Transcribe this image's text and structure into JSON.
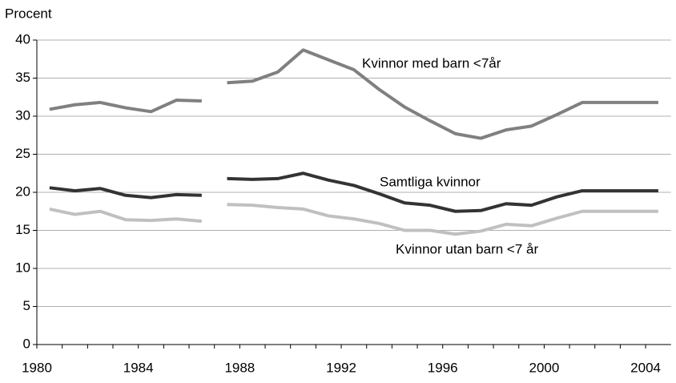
{
  "chart_data": {
    "type": "line",
    "y_label": "Procent",
    "categories": [
      "1980",
      null,
      null,
      null,
      "1984",
      null,
      null,
      null,
      "1988",
      null,
      null,
      null,
      "1992",
      null,
      null,
      null,
      "1996",
      null,
      null,
      null,
      "2000",
      null,
      null,
      null,
      "2004"
    ],
    "breaks": [
      7
    ],
    "series": [
      {
        "name": "Kvinnor med barn <7år",
        "color": "#808080",
        "values": [
          30.9,
          31.5,
          31.8,
          31.1,
          30.6,
          32.1,
          32.0,
          34.4,
          34.6,
          35.8,
          38.7,
          37.4,
          36.1,
          33.5,
          31.2,
          29.4,
          27.7,
          27.1,
          28.2,
          28.7,
          30.2,
          31.8,
          31.8,
          31.8,
          31.8
        ]
      },
      {
        "name": "Samtliga kvinnor",
        "color": "#333333",
        "values": [
          20.6,
          20.2,
          20.5,
          19.6,
          19.3,
          19.7,
          19.6,
          21.8,
          21.7,
          21.8,
          22.5,
          21.6,
          20.9,
          19.8,
          18.6,
          18.3,
          17.5,
          17.6,
          18.5,
          18.3,
          19.4,
          20.2,
          20.2,
          20.2,
          20.2
        ]
      },
      {
        "name": "Kvinnor utan barn <7 år",
        "color": "#c0c0c0",
        "values": [
          17.8,
          17.1,
          17.5,
          16.4,
          16.3,
          16.5,
          16.2,
          18.4,
          18.3,
          18.0,
          17.8,
          16.9,
          16.5,
          15.9,
          15.0,
          15.0,
          14.5,
          14.9,
          15.8,
          15.6,
          16.6,
          17.5,
          17.5,
          17.5,
          17.5
        ]
      }
    ],
    "ylim": [
      0,
      40
    ],
    "yticks": [
      0,
      5,
      10,
      15,
      20,
      25,
      30,
      35,
      40
    ],
    "grid": true
  }
}
